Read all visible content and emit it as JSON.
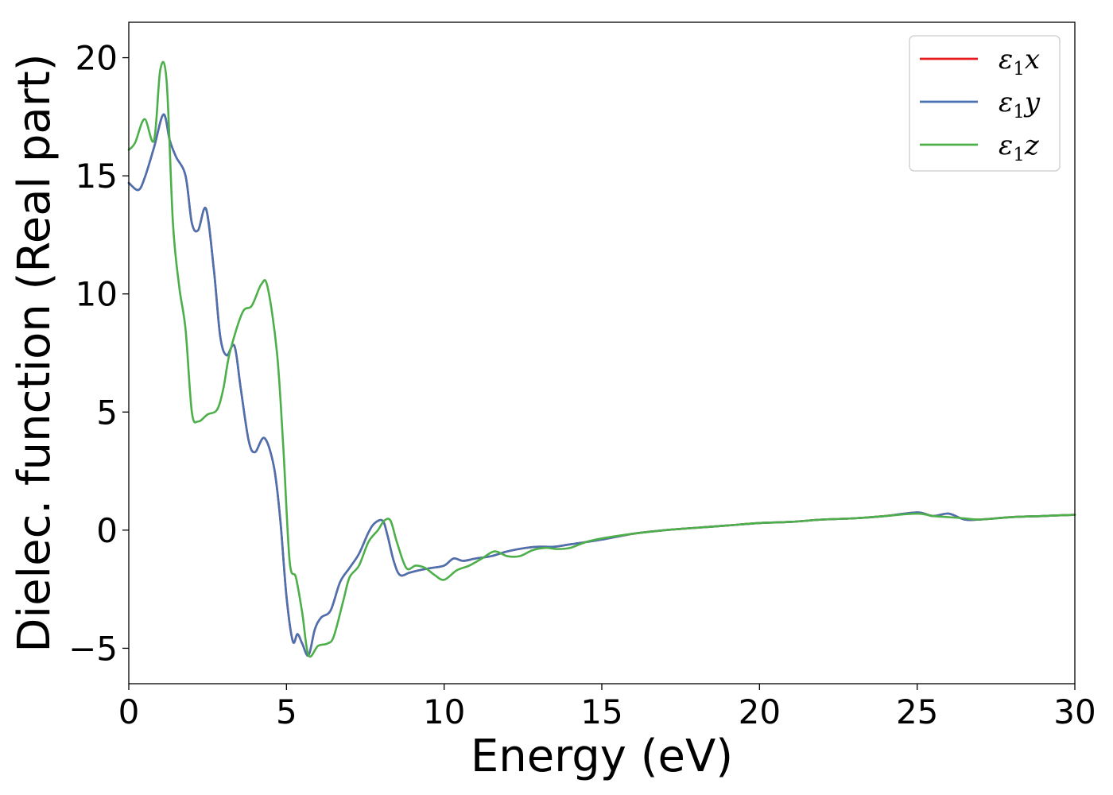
{
  "chart_data": {
    "type": "line",
    "title": "",
    "xlabel": "Energy (eV)",
    "ylabel": "Dielec. function (Real part)",
    "xlim": [
      0,
      30
    ],
    "ylim": [
      -6.5,
      21.5
    ],
    "xticks": [
      "0",
      "5",
      "10",
      "15",
      "20",
      "25",
      "30"
    ],
    "yticks": [
      "−5",
      "0",
      "5",
      "10",
      "15",
      "20"
    ],
    "xtick_values": [
      0,
      5,
      10,
      15,
      20,
      25,
      30
    ],
    "ytick_values": [
      -5,
      0,
      5,
      10,
      15,
      20
    ],
    "grid": false,
    "legend_position": "top-right",
    "series": [
      {
        "name": "ε₁x",
        "legend_base": "ε",
        "legend_sub": "1",
        "legend_axis": "x",
        "color": "#e41a1c",
        "x": [
          0,
          0.3,
          0.5,
          0.8,
          1.1,
          1.3,
          1.5,
          1.8,
          2.0,
          2.2,
          2.45,
          2.7,
          2.9,
          3.1,
          3.35,
          3.55,
          3.8,
          4.0,
          4.3,
          4.6,
          4.8,
          5.0,
          5.2,
          5.35,
          5.5,
          5.7,
          5.9,
          6.1,
          6.4,
          6.7,
          7.0,
          7.3,
          7.6,
          7.8,
          8.05,
          8.2,
          8.4,
          8.6,
          8.9,
          9.2,
          9.6,
          10.0,
          10.3,
          10.6,
          11.0,
          11.5,
          12.0,
          12.6,
          13.0,
          13.5,
          14.0,
          15.0,
          16.0,
          17.0,
          18.0,
          19.0,
          20.0,
          21.0,
          22.0,
          23.0,
          24.0,
          25.0,
          25.5,
          26.0,
          26.5,
          27.0,
          28.0,
          29.0,
          30.0
        ],
        "y": [
          14.7,
          14.4,
          14.9,
          16.2,
          17.6,
          16.5,
          15.8,
          15.0,
          13.0,
          12.7,
          13.6,
          11.0,
          8.2,
          7.4,
          7.8,
          6.0,
          3.8,
          3.3,
          3.9,
          2.7,
          0.5,
          -2.8,
          -4.7,
          -4.4,
          -4.8,
          -5.3,
          -4.2,
          -3.7,
          -3.4,
          -2.2,
          -1.6,
          -1.0,
          -0.1,
          0.3,
          0.4,
          -0.2,
          -1.3,
          -1.9,
          -1.8,
          -1.7,
          -1.6,
          -1.5,
          -1.2,
          -1.3,
          -1.2,
          -1.1,
          -0.9,
          -0.75,
          -0.7,
          -0.7,
          -0.6,
          -0.4,
          -0.15,
          0.0,
          0.1,
          0.2,
          0.3,
          0.35,
          0.45,
          0.5,
          0.6,
          0.75,
          0.6,
          0.7,
          0.45,
          0.45,
          0.55,
          0.6,
          0.65
        ]
      },
      {
        "name": "ε₁y",
        "legend_base": "ε",
        "legend_sub": "1",
        "legend_axis": "y",
        "color": "#4a72b0",
        "x": [
          0,
          0.3,
          0.5,
          0.8,
          1.1,
          1.3,
          1.5,
          1.8,
          2.0,
          2.2,
          2.45,
          2.7,
          2.9,
          3.1,
          3.35,
          3.55,
          3.8,
          4.0,
          4.3,
          4.6,
          4.8,
          5.0,
          5.2,
          5.35,
          5.5,
          5.7,
          5.9,
          6.1,
          6.4,
          6.7,
          7.0,
          7.3,
          7.6,
          7.8,
          8.05,
          8.2,
          8.4,
          8.6,
          8.9,
          9.2,
          9.6,
          10.0,
          10.3,
          10.6,
          11.0,
          11.5,
          12.0,
          12.6,
          13.0,
          13.5,
          14.0,
          15.0,
          16.0,
          17.0,
          18.0,
          19.0,
          20.0,
          21.0,
          22.0,
          23.0,
          24.0,
          25.0,
          25.5,
          26.0,
          26.5,
          27.0,
          28.0,
          29.0,
          30.0
        ],
        "y": [
          14.7,
          14.4,
          14.9,
          16.2,
          17.6,
          16.5,
          15.8,
          15.0,
          13.0,
          12.7,
          13.6,
          11.0,
          8.2,
          7.4,
          7.8,
          6.0,
          3.8,
          3.3,
          3.9,
          2.7,
          0.5,
          -2.8,
          -4.7,
          -4.4,
          -4.8,
          -5.3,
          -4.2,
          -3.7,
          -3.4,
          -2.2,
          -1.6,
          -1.0,
          -0.1,
          0.3,
          0.4,
          -0.2,
          -1.3,
          -1.9,
          -1.8,
          -1.7,
          -1.6,
          -1.5,
          -1.2,
          -1.3,
          -1.2,
          -1.1,
          -0.9,
          -0.75,
          -0.7,
          -0.7,
          -0.6,
          -0.4,
          -0.15,
          0.0,
          0.1,
          0.2,
          0.3,
          0.35,
          0.45,
          0.5,
          0.6,
          0.75,
          0.6,
          0.7,
          0.45,
          0.45,
          0.55,
          0.6,
          0.65
        ]
      },
      {
        "name": "ε₁z",
        "legend_base": "ε",
        "legend_sub": "1",
        "legend_axis": "z",
        "color": "#4daf4a",
        "x": [
          0,
          0.2,
          0.5,
          0.8,
          1.0,
          1.2,
          1.4,
          1.6,
          1.8,
          2.0,
          2.2,
          2.5,
          2.8,
          3.0,
          3.2,
          3.6,
          3.9,
          4.2,
          4.4,
          4.7,
          4.9,
          5.1,
          5.3,
          5.5,
          5.7,
          6.0,
          6.3,
          6.5,
          6.8,
          7.0,
          7.3,
          7.6,
          7.9,
          8.1,
          8.3,
          8.5,
          8.8,
          9.1,
          9.4,
          9.7,
          10.0,
          10.4,
          10.8,
          11.2,
          11.6,
          12.0,
          12.4,
          12.8,
          13.2,
          13.6,
          14.0,
          14.5,
          15.0,
          16.0,
          17.0,
          18.0,
          19.0,
          20.0,
          21.0,
          22.0,
          23.0,
          24.0,
          25.0,
          25.5,
          26.0,
          26.5,
          27.0,
          28.0,
          29.0,
          30.0
        ],
        "y": [
          16.1,
          16.4,
          17.4,
          16.5,
          19.5,
          19.0,
          13.0,
          10.3,
          8.5,
          5.0,
          4.6,
          4.9,
          5.1,
          6.0,
          7.5,
          9.2,
          9.5,
          10.4,
          10.3,
          7.5,
          3.5,
          -1.3,
          -2.0,
          -3.5,
          -5.3,
          -4.9,
          -4.8,
          -4.5,
          -3.0,
          -2.0,
          -1.5,
          -0.5,
          0.0,
          0.4,
          0.4,
          -0.5,
          -1.6,
          -1.5,
          -1.6,
          -1.9,
          -2.1,
          -1.7,
          -1.5,
          -1.2,
          -0.9,
          -1.1,
          -1.1,
          -0.85,
          -0.75,
          -0.8,
          -0.75,
          -0.5,
          -0.35,
          -0.15,
          0.0,
          0.1,
          0.2,
          0.3,
          0.35,
          0.45,
          0.5,
          0.6,
          0.7,
          0.6,
          0.55,
          0.5,
          0.45,
          0.55,
          0.6,
          0.65
        ]
      }
    ]
  }
}
